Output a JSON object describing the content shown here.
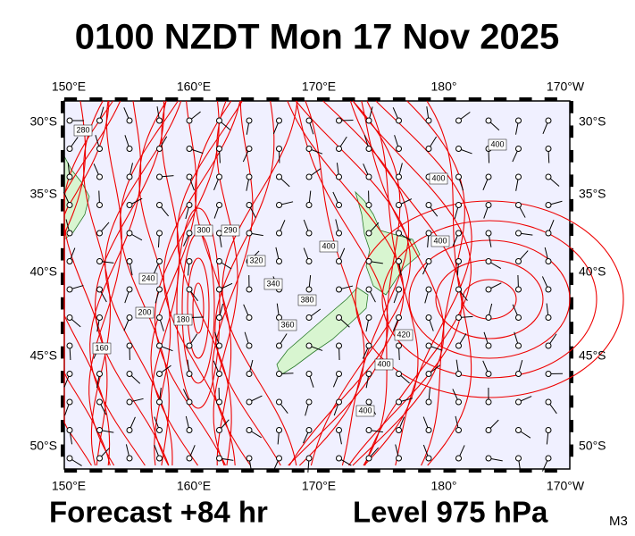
{
  "header": {
    "title": "0100 NZDT Mon 17 Nov 2025"
  },
  "map": {
    "lon_labels": [
      "150°E",
      "160°E",
      "170°E",
      "180°",
      "170°W"
    ],
    "lat_labels": [
      "30°S",
      "35°S",
      "40°S",
      "45°S",
      "50°S"
    ],
    "contour_labels": [
      280,
      400,
      400,
      400,
      300,
      290,
      320,
      340,
      400,
      380,
      360,
      240,
      200,
      180,
      160,
      420,
      400,
      400
    ]
  },
  "footer": {
    "forecast": "Forecast +84 hr",
    "level": "Level 975 hPa",
    "code": "M3"
  }
}
